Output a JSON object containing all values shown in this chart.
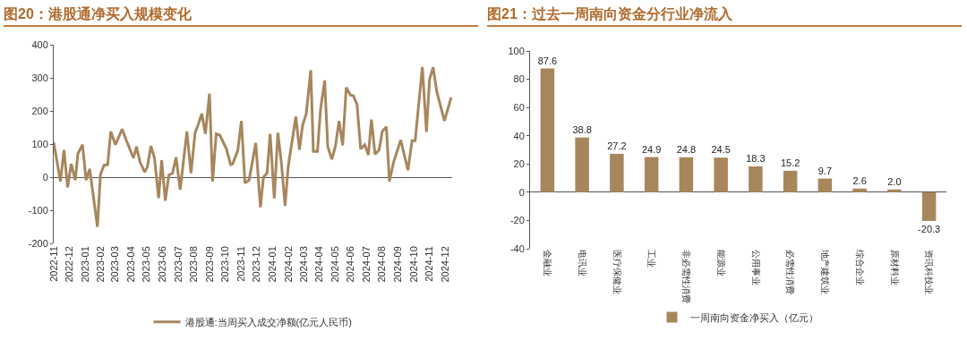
{
  "chart_data": [
    {
      "type": "line",
      "title": "图20：港股通净买入规模变化",
      "legend": "bottom",
      "x": [
        "2022-11-01",
        "2022-11-14",
        "2022-11-21",
        "2022-11-28",
        "2022-12-05",
        "2022-12-13",
        "2022-12-18",
        "2022-12-27",
        "2023-01-03",
        "2023-01-10",
        "2023-01-25",
        "2023-01-31",
        "2023-02-07",
        "2023-02-14",
        "2023-02-20",
        "2023-03-01",
        "2023-03-14",
        "2023-03-22",
        "2023-04-05",
        "2023-04-11",
        "2023-04-18",
        "2023-04-27",
        "2023-05-02",
        "2023-05-09",
        "2023-05-16",
        "2023-05-24",
        "2023-05-30",
        "2023-06-06",
        "2023-06-13",
        "2023-06-20",
        "2023-06-27",
        "2023-07-05",
        "2023-07-18",
        "2023-07-26",
        "2023-08-03",
        "2023-08-10",
        "2023-08-16",
        "2023-08-23",
        "2023-08-31",
        "2023-09-06",
        "2023-09-13",
        "2023-09-20",
        "2023-10-03",
        "2023-10-11",
        "2023-10-15",
        "2023-10-25",
        "2023-11-01",
        "2023-11-08",
        "2023-11-16",
        "2023-11-29",
        "2023-12-08",
        "2023-12-14",
        "2023-12-21",
        "2023-12-27",
        "2024-01-04",
        "2024-01-11",
        "2024-01-18",
        "2024-01-25",
        "2024-01-31",
        "2024-02-15",
        "2024-02-22",
        "2024-02-28",
        "2024-03-06",
        "2024-03-15",
        "2024-03-20",
        "2024-03-28",
        "2024-04-03",
        "2024-04-11",
        "2024-04-17",
        "2024-04-25",
        "2024-05-02",
        "2024-05-09",
        "2024-05-16",
        "2024-05-23",
        "2024-05-31",
        "2024-06-06",
        "2024-06-13",
        "2024-06-20",
        "2024-06-28",
        "2024-07-05",
        "2024-07-11",
        "2024-07-18",
        "2024-07-26",
        "2024-08-01",
        "2024-08-09",
        "2024-08-15",
        "2024-08-23",
        "2024-09-06",
        "2024-09-20",
        "2024-09-28",
        "2024-10-04",
        "2024-10-18",
        "2024-10-26",
        "2024-11-01",
        "2024-11-08",
        "2024-11-15",
        "2024-11-30",
        "2024-12-13"
      ],
      "series": [
        {
          "name": "港股通:当周买入成交净额(亿元人民币)",
          "color": "#a8865c",
          "values": [
            105,
            -13,
            82,
            -31,
            40,
            -9,
            71,
            98,
            -9,
            25,
            -150,
            9,
            36,
            38,
            138,
            98,
            145,
            112,
            58,
            92,
            45,
            15,
            31,
            94,
            58,
            -63,
            51,
            -71,
            6,
            12,
            60,
            -38,
            138,
            12,
            134,
            163,
            192,
            131,
            252,
            -13,
            131,
            127,
            85,
            38,
            40,
            80,
            170,
            -18,
            -9,
            103,
            -91,
            0,
            12,
            131,
            -64,
            134,
            40,
            -87,
            31,
            183,
            83,
            156,
            190,
            323,
            78,
            78,
            205,
            292,
            92,
            54,
            94,
            170,
            96,
            271,
            248,
            246,
            219,
            85,
            98,
            67,
            174,
            69,
            82,
            138,
            152,
            -13,
            45,
            112,
            21,
            110,
            110,
            333,
            137,
            295,
            332,
            259,
            170,
            241
          ]
        }
      ],
      "xlim": [
        "2022-11-01",
        "2024-12-15"
      ],
      "xticks": [
        {
          "value": "2022-11",
          "label": "2022-11"
        },
        {
          "value": "2022-12",
          "label": "2022-12"
        },
        {
          "value": "2023-01",
          "label": "2023-01"
        },
        {
          "value": "2023-02",
          "label": "2023-02"
        },
        {
          "value": "2023-03",
          "label": "2023-03"
        },
        {
          "value": "2023-04",
          "label": "2023-04"
        },
        {
          "value": "2023-05",
          "label": "2023-05"
        },
        {
          "value": "2023-06",
          "label": "2023-06"
        },
        {
          "value": "2023-07",
          "label": "2023-07"
        },
        {
          "value": "2023-08",
          "label": "2023-08"
        },
        {
          "value": "2023-09",
          "label": "2023-09"
        },
        {
          "value": "2023-10",
          "label": "2023-10"
        },
        {
          "value": "2023-11",
          "label": "2023-11"
        },
        {
          "value": "2023-12",
          "label": "2023-12"
        },
        {
          "value": "2024-01",
          "label": "2024-01"
        },
        {
          "value": "2024-02",
          "label": "2024-02"
        },
        {
          "value": "2024-03",
          "label": "2024-03"
        },
        {
          "value": "2024-04",
          "label": "2024-04"
        },
        {
          "value": "2024-05",
          "label": "2024-05"
        },
        {
          "value": "2024-06",
          "label": "2024-06"
        },
        {
          "value": "2024-07",
          "label": "2024-07"
        },
        {
          "value": "2024-08",
          "label": "2024-08"
        },
        {
          "value": "2024-09",
          "label": "2024-09"
        },
        {
          "value": "2024-10",
          "label": "2024-10"
        },
        {
          "value": "2024-11",
          "label": "2024-11"
        },
        {
          "value": "2024-12",
          "label": "2024-12"
        }
      ],
      "ylim": [
        -200,
        400
      ],
      "yticks": [
        -200,
        -100,
        0,
        100,
        200,
        300,
        400
      ]
    },
    {
      "type": "bar",
      "title": "图21：过去一周南向资金分行业净流入",
      "legend": "bottom",
      "categories": [
        "金融业",
        "电讯业",
        "医疗保健业",
        "工业",
        "非必需性消费",
        "能源业",
        "公用事业",
        "必需性消费",
        "地产建筑业",
        "综合企业",
        "原材料业",
        "资讯科技业"
      ],
      "series": [
        {
          "name": "一周南向资金净买入（亿元）",
          "color": "#a8865c",
          "values": [
            87.6,
            38.8,
            27.2,
            24.9,
            24.8,
            24.5,
            18.3,
            15.2,
            9.7,
            2.6,
            2.0,
            -20.3
          ],
          "value_labels": [
            "87.6",
            "38.8",
            "27.2",
            "24.9",
            "24.8",
            "24.5",
            "18.3",
            "15.2",
            "9.7",
            "2.6",
            "2.0",
            "-20.3"
          ]
        }
      ],
      "ylim": [
        -40,
        100
      ],
      "yticks": [
        -40,
        -20,
        0,
        20,
        40,
        60,
        80,
        100
      ]
    }
  ]
}
